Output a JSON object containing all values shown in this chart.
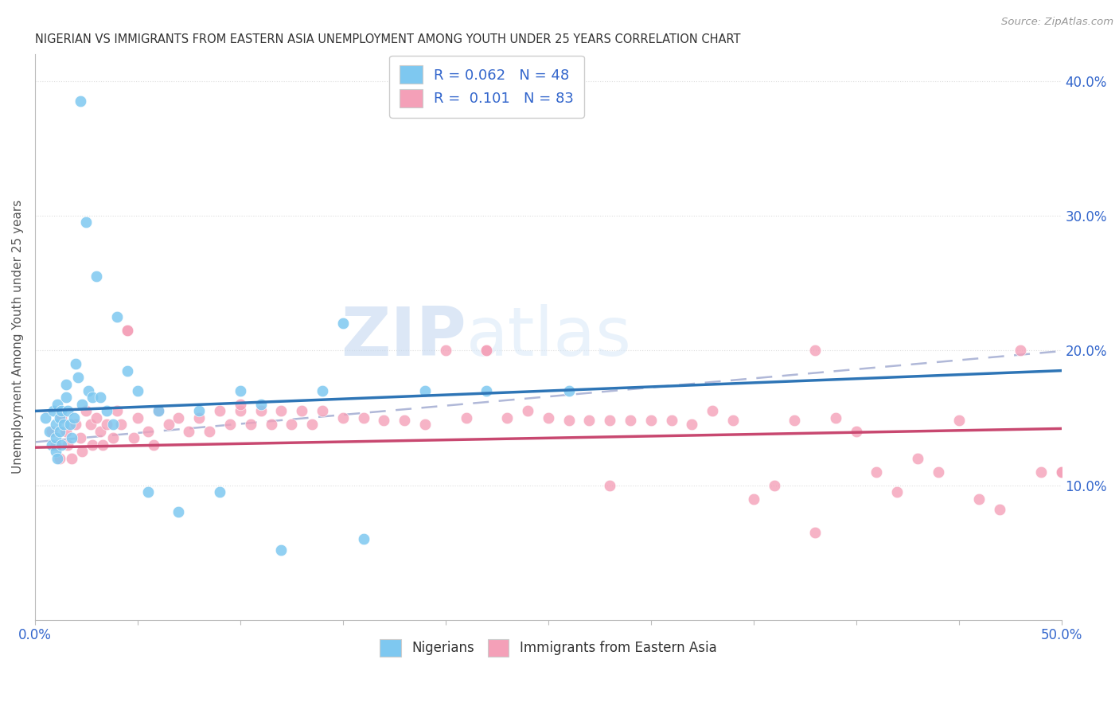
{
  "title": "NIGERIAN VS IMMIGRANTS FROM EASTERN ASIA UNEMPLOYMENT AMONG YOUTH UNDER 25 YEARS CORRELATION CHART",
  "source": "Source: ZipAtlas.com",
  "ylabel": "Unemployment Among Youth under 25 years",
  "blue_color": "#7ec8f0",
  "pink_color": "#f4a0b8",
  "blue_line_color": "#2E75B6",
  "pink_line_color": "#c84870",
  "dashed_line_color": "#b0b8d8",
  "watermark_zip": "ZIP",
  "watermark_atlas": "atlas",
  "watermark_color": "#ccddf5",
  "background_color": "#ffffff",
  "xlim": [
    0.0,
    0.5
  ],
  "ylim": [
    0.0,
    0.42
  ],
  "nigerian_x": [
    0.005,
    0.007,
    0.008,
    0.009,
    0.01,
    0.01,
    0.01,
    0.011,
    0.011,
    0.012,
    0.012,
    0.013,
    0.013,
    0.014,
    0.015,
    0.015,
    0.016,
    0.017,
    0.018,
    0.019,
    0.02,
    0.021,
    0.022,
    0.023,
    0.025,
    0.026,
    0.028,
    0.03,
    0.032,
    0.035,
    0.038,
    0.04,
    0.045,
    0.05,
    0.055,
    0.06,
    0.07,
    0.08,
    0.09,
    0.1,
    0.11,
    0.12,
    0.14,
    0.16,
    0.19,
    0.22,
    0.26,
    0.15
  ],
  "nigerian_y": [
    0.15,
    0.14,
    0.13,
    0.155,
    0.145,
    0.135,
    0.125,
    0.16,
    0.12,
    0.15,
    0.14,
    0.155,
    0.13,
    0.145,
    0.175,
    0.165,
    0.155,
    0.145,
    0.135,
    0.15,
    0.19,
    0.18,
    0.385,
    0.16,
    0.295,
    0.17,
    0.165,
    0.255,
    0.165,
    0.155,
    0.145,
    0.225,
    0.185,
    0.17,
    0.095,
    0.155,
    0.08,
    0.155,
    0.095,
    0.17,
    0.16,
    0.052,
    0.17,
    0.06,
    0.17,
    0.17,
    0.17,
    0.22
  ],
  "asian_x": [
    0.008,
    0.01,
    0.012,
    0.013,
    0.015,
    0.016,
    0.018,
    0.02,
    0.022,
    0.023,
    0.025,
    0.027,
    0.028,
    0.03,
    0.032,
    0.033,
    0.035,
    0.038,
    0.04,
    0.042,
    0.045,
    0.048,
    0.05,
    0.055,
    0.058,
    0.06,
    0.065,
    0.07,
    0.075,
    0.08,
    0.085,
    0.09,
    0.095,
    0.1,
    0.105,
    0.11,
    0.115,
    0.12,
    0.125,
    0.13,
    0.135,
    0.14,
    0.15,
    0.16,
    0.17,
    0.18,
    0.19,
    0.2,
    0.21,
    0.22,
    0.23,
    0.24,
    0.25,
    0.26,
    0.27,
    0.28,
    0.29,
    0.3,
    0.31,
    0.32,
    0.33,
    0.34,
    0.35,
    0.36,
    0.37,
    0.38,
    0.39,
    0.4,
    0.41,
    0.42,
    0.43,
    0.44,
    0.45,
    0.46,
    0.47,
    0.48,
    0.49,
    0.5,
    0.38,
    0.22,
    0.045,
    0.1,
    0.28,
    0.5
  ],
  "asian_y": [
    0.14,
    0.13,
    0.12,
    0.15,
    0.14,
    0.13,
    0.12,
    0.145,
    0.135,
    0.125,
    0.155,
    0.145,
    0.13,
    0.15,
    0.14,
    0.13,
    0.145,
    0.135,
    0.155,
    0.145,
    0.215,
    0.135,
    0.15,
    0.14,
    0.13,
    0.155,
    0.145,
    0.15,
    0.14,
    0.15,
    0.14,
    0.155,
    0.145,
    0.155,
    0.145,
    0.155,
    0.145,
    0.155,
    0.145,
    0.155,
    0.145,
    0.155,
    0.15,
    0.15,
    0.148,
    0.148,
    0.145,
    0.2,
    0.15,
    0.2,
    0.15,
    0.155,
    0.15,
    0.148,
    0.148,
    0.148,
    0.148,
    0.148,
    0.148,
    0.145,
    0.155,
    0.148,
    0.09,
    0.1,
    0.148,
    0.2,
    0.15,
    0.14,
    0.11,
    0.095,
    0.12,
    0.11,
    0.148,
    0.09,
    0.082,
    0.2,
    0.11,
    0.11,
    0.065,
    0.2,
    0.215,
    0.16,
    0.1,
    0.11
  ]
}
